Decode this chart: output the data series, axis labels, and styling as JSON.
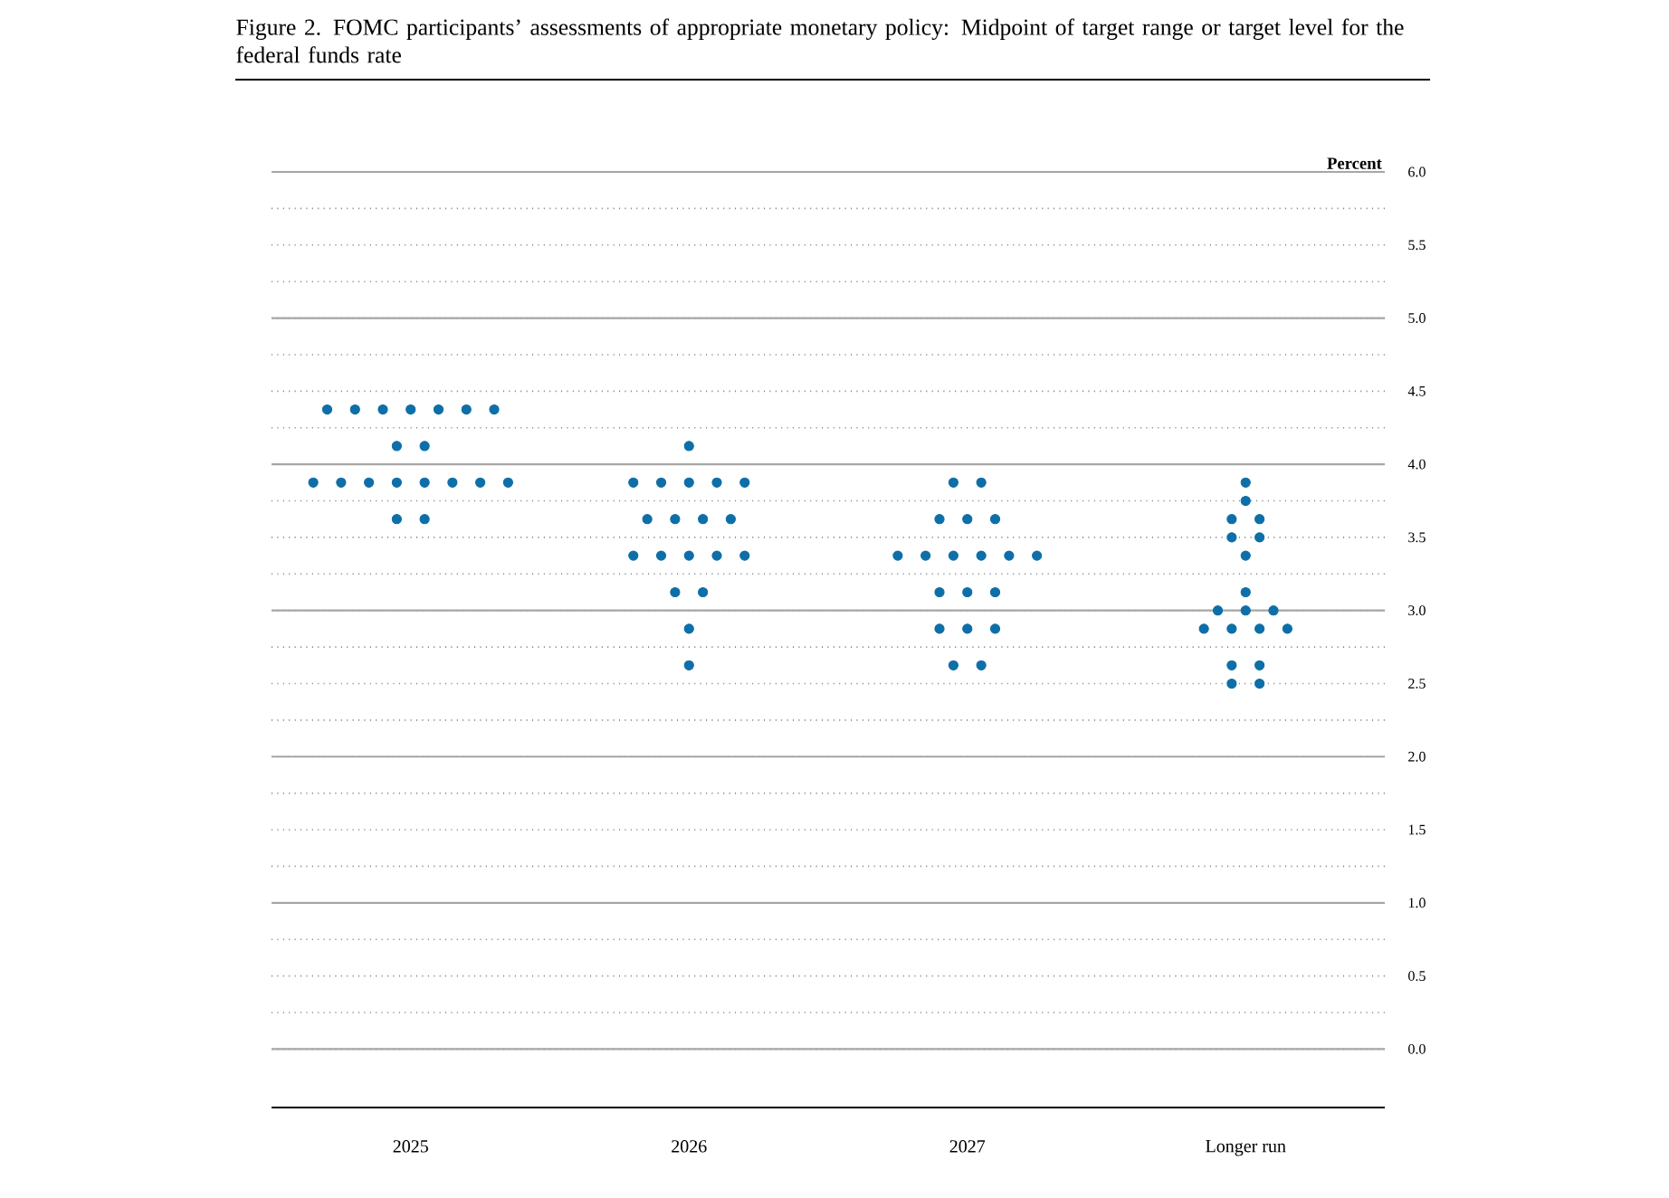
{
  "chart_data": {
    "type": "scatter",
    "title": "Figure 2.  FOMC participants’ assessments of appropriate monetary policy:  Midpoint of target range or target level for the federal funds rate",
    "ylabel": "Percent",
    "categories": [
      "2025",
      "2026",
      "2027",
      "Longer run"
    ],
    "series": [
      {
        "color": "#0e6fa8",
        "values": [
          4.375,
          4.125,
          3.875,
          3.875
        ]
      },
      {
        "color": "#0e6fa8",
        "values": [
          4.375,
          3.875,
          3.875,
          3.75
        ]
      },
      {
        "color": "#0e6fa8",
        "values": [
          4.375,
          3.875,
          3.625,
          3.625
        ]
      },
      {
        "color": "#0e6fa8",
        "values": [
          4.375,
          3.875,
          3.625,
          3.625
        ]
      },
      {
        "color": "#0e6fa8",
        "values": [
          4.375,
          3.875,
          3.625,
          3.5
        ]
      },
      {
        "color": "#0e6fa8",
        "values": [
          4.375,
          3.875,
          3.375,
          3.5
        ]
      },
      {
        "color": "#0e6fa8",
        "values": [
          4.375,
          3.625,
          3.375,
          3.375
        ]
      },
      {
        "color": "#0e6fa8",
        "values": [
          4.125,
          3.625,
          3.375,
          3.125
        ]
      },
      {
        "color": "#0e6fa8",
        "values": [
          4.125,
          3.625,
          3.375,
          3.0
        ]
      },
      {
        "color": "#0e6fa8",
        "values": [
          3.875,
          3.625,
          3.375,
          3.0
        ]
      },
      {
        "color": "#0e6fa8",
        "values": [
          3.875,
          3.375,
          3.375,
          3.0
        ]
      },
      {
        "color": "#0e6fa8",
        "values": [
          3.875,
          3.375,
          3.125,
          2.875
        ]
      },
      {
        "color": "#0e6fa8",
        "values": [
          3.875,
          3.375,
          3.125,
          2.875
        ]
      },
      {
        "color": "#0e6fa8",
        "values": [
          3.875,
          3.375,
          3.125,
          2.875
        ]
      },
      {
        "color": "#0e6fa8",
        "values": [
          3.875,
          3.375,
          2.875,
          2.875
        ]
      },
      {
        "color": "#0e6fa8",
        "values": [
          3.875,
          3.125,
          2.875,
          2.625
        ]
      },
      {
        "color": "#0e6fa8",
        "values": [
          3.875,
          3.125,
          2.875,
          2.625
        ]
      },
      {
        "color": "#0e6fa8",
        "values": [
          3.625,
          2.875,
          2.625,
          2.5
        ]
      },
      {
        "color": "#0e6fa8",
        "values": [
          3.625,
          2.625,
          2.625,
          2.5
        ]
      }
    ],
    "ylim": [
      -0.4,
      6.0
    ],
    "yticks": [
      {
        "value": 0,
        "label": "0.0"
      },
      {
        "value": 0.5,
        "label": "0.5"
      },
      {
        "value": 1,
        "label": "1.0"
      },
      {
        "value": 1.5,
        "label": "1.5"
      },
      {
        "value": 2,
        "label": "2.0"
      },
      {
        "value": 2.5,
        "label": "2.5"
      },
      {
        "value": 3,
        "label": "3.0"
      },
      {
        "value": 3.5,
        "label": "3.5"
      },
      {
        "value": 4,
        "label": "4.0"
      },
      {
        "value": 4.5,
        "label": "4.5"
      },
      {
        "value": 5,
        "label": "5.0"
      },
      {
        "value": 5.5,
        "label": "5.5"
      },
      {
        "value": 6,
        "label": "6.0"
      }
    ],
    "grid": "y"
  }
}
